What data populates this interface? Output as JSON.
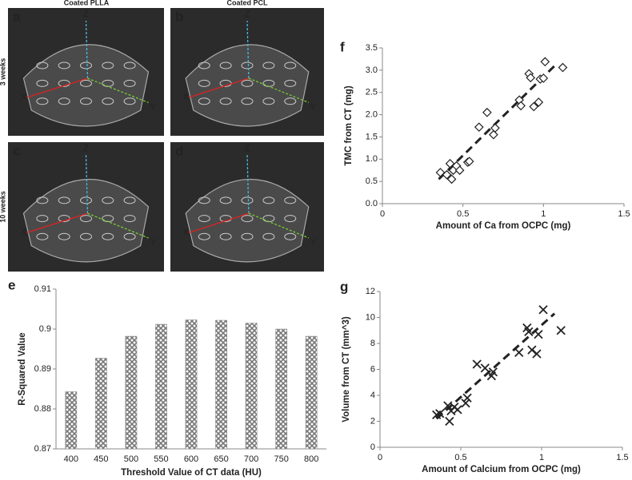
{
  "figure": {
    "columns": [
      "Coated PLLA",
      "Coated PCL"
    ],
    "rows": [
      "3 weeks",
      "10 weeks"
    ],
    "panels": [
      "a",
      "b",
      "c",
      "d"
    ],
    "axis_labels": [
      "X",
      "Y",
      "Z"
    ]
  },
  "chart_data": [
    {
      "type": "bar",
      "panel_label": "e",
      "x_label": "Threshold Value of CT data (HU)",
      "y_label": "R-Squared Value",
      "categories": [
        "400",
        "450",
        "500",
        "550",
        "600",
        "650",
        "700",
        "750",
        "800"
      ],
      "values": [
        0.8843,
        0.8927,
        0.8982,
        0.9012,
        0.9023,
        0.9022,
        0.9015,
        0.9,
        0.8982
      ],
      "color": "#8a8a8a",
      "ylim": [
        0.87,
        0.91
      ],
      "yticks": [
        0.87,
        0.88,
        0.89,
        0.9,
        0.91
      ]
    },
    {
      "type": "scatter",
      "panel_label": "f",
      "x_label": "Amount of Ca from OCPC (mg)",
      "y_label": "TMC from CT (mg)",
      "marker": "diamond",
      "color": "#222222",
      "x": [
        0.36,
        0.4,
        0.42,
        0.43,
        0.44,
        0.46,
        0.48,
        0.53,
        0.54,
        0.6,
        0.65,
        0.69,
        0.7,
        0.85,
        0.86,
        0.91,
        0.92,
        0.94,
        0.97,
        0.98,
        1.0,
        1.01,
        1.12
      ],
      "values": [
        0.7,
        0.65,
        0.9,
        0.55,
        0.75,
        0.85,
        0.75,
        0.93,
        0.95,
        1.72,
        2.05,
        1.55,
        1.7,
        2.33,
        2.2,
        2.92,
        2.83,
        2.18,
        2.28,
        2.8,
        2.82,
        3.19,
        3.06
      ],
      "trendline": {
        "x": [
          0.35,
          1.07
        ],
        "y": [
          0.55,
          3.1
        ]
      },
      "xlim": [
        0,
        1.5
      ],
      "xticks": [
        0,
        0.5,
        1,
        1.5
      ],
      "ylim": [
        0,
        3.5
      ],
      "yticks": [
        {
          "value": 0,
          "label": "0.0"
        },
        0.5,
        {
          "value": 1,
          "label": "1.0"
        },
        1.5,
        {
          "value": 2,
          "label": "2.0"
        },
        2.5,
        {
          "value": 3,
          "label": "3.0"
        },
        3.5
      ]
    },
    {
      "type": "scatter",
      "panel_label": "g",
      "x_label": "Amount of Calcium from OCPC (mg)",
      "y_label": "Volume from CT (mm^3)",
      "marker": "cross",
      "color": "#222222",
      "x": [
        0.35,
        0.37,
        0.42,
        0.43,
        0.44,
        0.46,
        0.48,
        0.53,
        0.54,
        0.6,
        0.65,
        0.69,
        0.7,
        0.86,
        0.91,
        0.92,
        0.94,
        0.97,
        0.98,
        1.01,
        1.12
      ],
      "values": [
        2.5,
        2.6,
        3.2,
        2.0,
        2.8,
        3.1,
        2.9,
        3.4,
        3.8,
        6.4,
        6.1,
        5.5,
        5.8,
        7.3,
        9.2,
        8.9,
        7.5,
        7.2,
        8.7,
        10.6,
        9.0
      ],
      "trendline": {
        "x": [
          0.35,
          1.08
        ],
        "y": [
          2.2,
          10.3
        ]
      },
      "xlim": [
        0,
        1.5
      ],
      "xticks": [
        0,
        0.5,
        1,
        1.5
      ],
      "ylim": [
        0,
        12
      ],
      "yticks": [
        0,
        2,
        4,
        6,
        8,
        10,
        12
      ]
    }
  ]
}
